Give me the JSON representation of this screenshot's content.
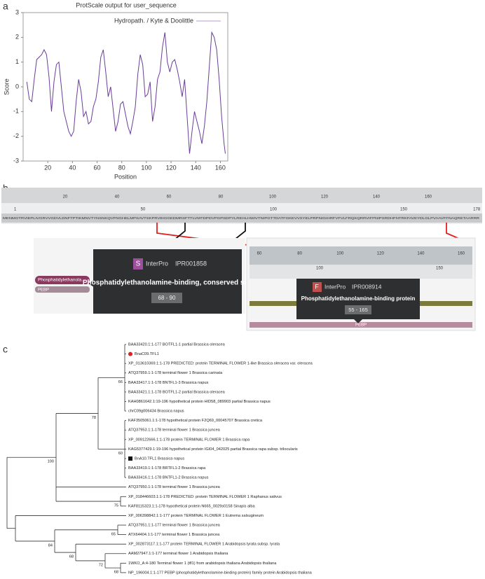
{
  "panel_labels": [
    "a",
    "b",
    "c"
  ],
  "chart_data": {
    "type": "line",
    "title": "ProtScale output for user_sequence",
    "x_label": "Position",
    "y_label": "Score",
    "x": [
      3,
      5,
      7,
      9,
      11,
      13,
      15,
      17,
      19,
      21,
      23,
      25,
      27,
      29,
      31,
      33,
      35,
      37,
      39,
      41,
      43,
      45,
      47,
      49,
      51,
      53,
      55,
      57,
      59,
      61,
      63,
      65,
      67,
      69,
      71,
      73,
      75,
      77,
      79,
      81,
      83,
      85,
      87,
      89,
      91,
      93,
      95,
      97,
      99,
      101,
      103,
      105,
      107,
      109,
      111,
      113,
      115,
      117,
      119,
      121,
      123,
      125,
      127,
      129,
      131,
      133,
      135,
      137,
      139,
      141,
      143,
      145,
      147,
      149,
      151,
      153,
      155,
      157,
      159,
      161,
      163,
      164
    ],
    "series": [
      {
        "name": "Hydropath. / Kyte & Doolittle",
        "color": "#6a3d9a",
        "values": [
          0.2,
          -0.5,
          -0.6,
          0.3,
          1.1,
          1.2,
          1.3,
          1.5,
          1.3,
          0.4,
          -1.0,
          0.2,
          0.9,
          1.0,
          0.0,
          -1.0,
          -1.4,
          -1.8,
          -2.0,
          -1.8,
          -0.6,
          0.3,
          -0.2,
          -1.2,
          -1.0,
          -1.5,
          -1.4,
          -0.8,
          -0.5,
          0.2,
          1.2,
          1.5,
          0.6,
          -0.4,
          0.0,
          -0.9,
          -1.8,
          -1.4,
          -0.7,
          -0.6,
          -1.1,
          -1.6,
          -1.9,
          -1.4,
          -0.8,
          0.5,
          1.3,
          0.9,
          -0.4,
          -0.3,
          0.2,
          -1.4,
          -0.8,
          0.3,
          0.6,
          1.6,
          2.2,
          1.0,
          0.6,
          1.0,
          1.1,
          0.7,
          0.2,
          -0.4,
          0.3,
          -1.2,
          -2.7,
          -1.8,
          -1.0,
          -1.4,
          -1.8,
          -2.3,
          -1.6,
          -0.6,
          0.8,
          2.2,
          2.0,
          1.5,
          0.3,
          -1.2,
          -2.3,
          -2.7
        ]
      }
    ],
    "xlim": [
      0,
      166
    ],
    "ylim": [
      -3,
      3
    ],
    "xticks": [
      20,
      40,
      60,
      80,
      100,
      120,
      140,
      160
    ],
    "yticks": [
      -3,
      -2,
      -1,
      0,
      1,
      2,
      3
    ],
    "legend": "top-right"
  },
  "panel_b": {
    "ruler_top": [
      20,
      40,
      60,
      80,
      100,
      120,
      140,
      160
    ],
    "ruler_bottom": [
      1,
      50,
      100,
      150,
      178
    ],
    "sequence": "MENMGTRVIEPLIVGRVVGDVLDNFTPTIKMNVTYNSNKQVFNGHELMPSAVTSKPRVEIGGEDMRSFTTLVMTDPDVPGPSDPYLREHLHWIVTNIPGTTDATFGKEVVSYELPRPNIGIHRFVFVLFRQKQRRVIFPNIPSRDHFNTRKFAVEYDLGLPVAAVFFNAQRETAARRR",
    "left_track": [
      "Phosphatidylethanola...",
      "PEBP"
    ],
    "popup_s": {
      "badge": "S",
      "source": "InterPro",
      "id": "IPR001858",
      "title": "Phosphatidylethanolamine-binding, conserved site",
      "range": "68 - 90"
    },
    "right_ruler_top": [
      60,
      80,
      100,
      120,
      140,
      160
    ],
    "right_ruler_bottom": [
      100,
      150
    ],
    "popup_f": {
      "badge": "F",
      "source": "InterPro",
      "id": "IPR008914",
      "title": "Phosphatidylethanolamine-binding protein",
      "range": "55 - 165"
    },
    "right_track": "PEBP"
  },
  "panel_c": {
    "leaves": [
      "BAA33420.1:1-177 BOTFL1-1 partial Brassica oleracea",
      "BnaC09.TFL1",
      "XP_013610369.1:1-178 PREDICTED: protein TERMINAL FLOWER 1-like Brassica oleracea var. oleracea",
      "ATQ37959.1:1-178 terminal flower 1 Brassica carinata",
      "BAA33417.1:1-178 BNTFL1-3 Brassica napus",
      "BAA33421.1:1-178 BOTFL1-2 partial Brassica oleracea",
      "KAH0861642.1:19-196 hypothetical protein HID58_089903 partial Brassica napus",
      "chrC09g006434 Brassica napus",
      "KAF3505061.1:1-178 hypothetical protein F2Q69_00045707 Brassica cretica",
      "ATQ37953.1:1-178 terminal flower 1 Brassica juncea",
      "XP_009122666.1:1-178 protein TERMINAL FLOWER 1 Brassica rapa",
      "KAG5377429.1:19-196 hypothetical protein IGI04_042025 partial Brassica rapa subsp. trilocularis",
      "BnA10.TFL1 Brassica napus",
      "BAA33419.1:1-178 BRTFL1-2 Brassica rapa",
      "BAA33416.1:1-178 BNTFL1-2 Brassica napus",
      "ATQ37950.1:1-178 terminal flower 1 Brassica juncea",
      "XP_018446603.1:1-178 PREDICTED: protein TERMINAL FLOWER 1 Raphanus sativus",
      "KAF8115323.1:1-178 hypothetical protein N665_0029s0158 Sinapis alba",
      "XP_006398842.1:1-177 protein TERMINAL FLOWER 1 Eutrema salsugineum",
      "ATQ37951.1:1-177 terminal flower 1 Brassica juncea",
      "ATX64404.1:1-177 terminal flower 1 Brassica juncea",
      "XP_002873117.1:1-177 protein TERMINAL FLOWER 1 Arabidopsis lyrata subsp. lyrata",
      "AAM27947.1:1-177 terminal flower 1 Arabidopsis thaliana",
      "1WKO_A:4-180 Terminal flower 1 (tfl1) from arabidopsis thaliana Arabidopsis thaliana",
      "NP_196004.1:1-177 PEBP (phosphatidylethanolamine-binding protein) family protein Arabidopsis thaliana"
    ],
    "bootstrap": [
      66,
      78,
      100,
      60,
      75,
      65,
      84,
      68,
      72,
      68
    ]
  }
}
